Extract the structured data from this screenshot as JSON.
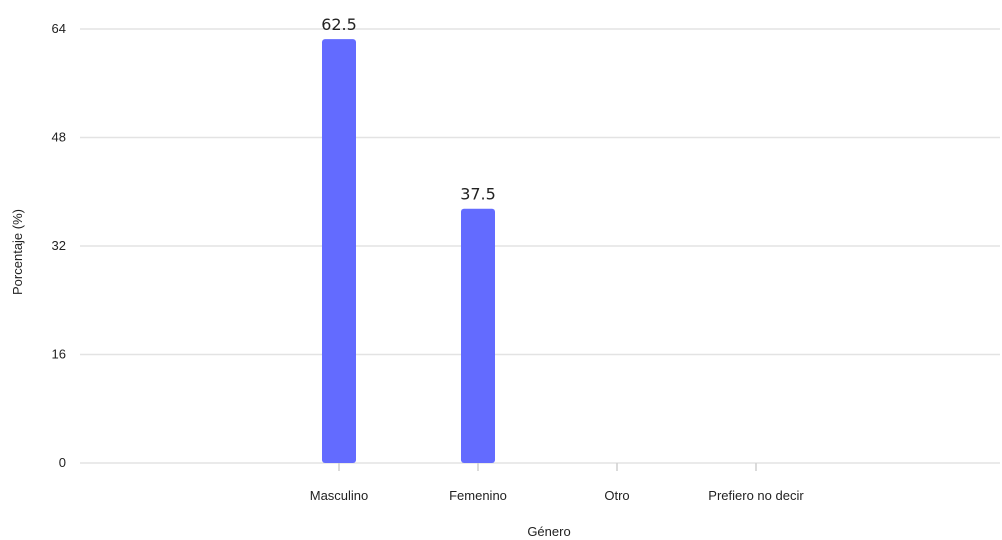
{
  "chart_data": {
    "type": "bar",
    "categories": [
      "Masculino",
      "Femenino",
      "Otro",
      "Prefiero no decir"
    ],
    "values": [
      62.5,
      37.5,
      0,
      0
    ],
    "data_labels": [
      "62.5",
      "37.5",
      "",
      ""
    ],
    "xlabel": "Género",
    "ylabel": "Porcentaje (%)",
    "ylim": [
      0,
      64
    ],
    "yticks": [
      0,
      16,
      32,
      48,
      64
    ],
    "grid": true,
    "bar_color": "#636bff"
  }
}
